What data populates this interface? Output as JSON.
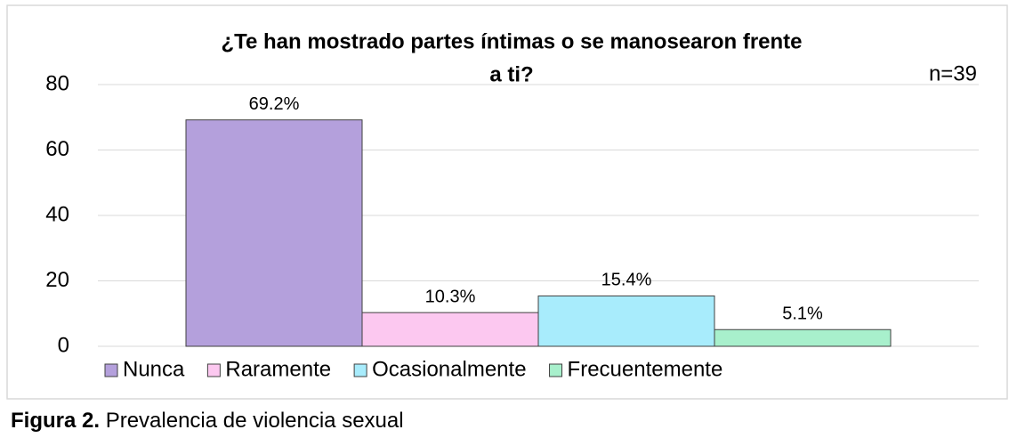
{
  "chart_data": {
    "type": "bar",
    "title": [
      "¿Te han mostrado partes íntimas o se manosearon frente",
      "a ti?"
    ],
    "annotation": "n=39",
    "categories": [
      null
    ],
    "series": [
      {
        "name": "Nunca",
        "color": "#b4a0dc",
        "values": [
          69.2
        ],
        "value_labels": [
          "69.2%"
        ]
      },
      {
        "name": "Raramente",
        "color": "#fcc8f0",
        "values": [
          10.3
        ],
        "value_labels": [
          "10.3%"
        ]
      },
      {
        "name": "Ocasionalmente",
        "color": "#a8ecfc",
        "values": [
          15.4
        ],
        "value_labels": [
          "15.4%"
        ]
      },
      {
        "name": "Frecuentemente",
        "color": "#a8f0cc",
        "values": [
          5.1
        ],
        "value_labels": [
          "5.1%"
        ]
      }
    ],
    "ylim": [
      0,
      80
    ],
    "yticks": [
      0,
      20,
      40,
      60,
      80
    ],
    "grid": true,
    "legend": "bottom"
  },
  "caption": {
    "label": "Figura 2.",
    "text": "Prevalencia de violencia sexual"
  }
}
